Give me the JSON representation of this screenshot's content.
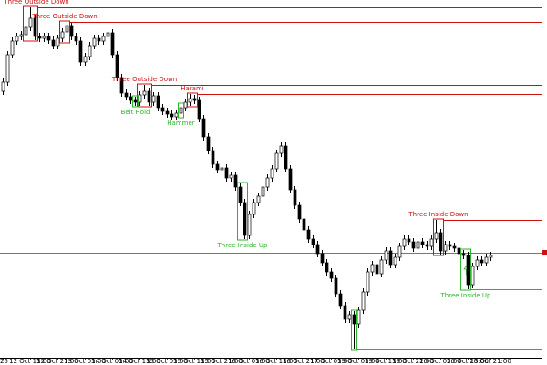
{
  "chart_data": {
    "type": "candlestick",
    "ylim": [
      0,
      392
    ],
    "categories": [
      "25",
      null,
      null,
      null,
      null,
      null,
      "12 Oct 13:00",
      null,
      null,
      null,
      null,
      null,
      "12 Oct 21:00",
      null,
      null,
      null,
      null,
      null,
      "13 Oct 05:00",
      null,
      null,
      null,
      null,
      null,
      "14 Oct 05:00",
      null,
      null,
      null,
      null,
      null,
      "14 Oct 13:00",
      null,
      null,
      null,
      null,
      null,
      "15 Oct 05:00",
      null,
      null,
      null,
      null,
      null,
      "15 Oct 13:00",
      null,
      null,
      null,
      null,
      null,
      "15 Oct 21:00",
      null,
      null,
      null,
      null,
      null,
      "16 Oct 05:00",
      null,
      null,
      null,
      null,
      null,
      "16 Oct 13:00",
      null,
      null,
      null,
      null,
      null,
      "16 Oct 21:00",
      null,
      null,
      null,
      null,
      null,
      "17 Oct 05:00",
      null,
      null,
      null,
      null,
      null,
      "19 Oct 05:00",
      null,
      null,
      null,
      null,
      null,
      "19 Oct 13:00",
      null,
      null,
      null,
      null,
      null,
      "19 Oct 21:00",
      null,
      null,
      null,
      null,
      null,
      "20 Oct 05:00",
      null,
      null,
      null,
      null,
      null,
      "20 Oct 13:00",
      null,
      null,
      null,
      null,
      "20 Oct 21:00"
    ],
    "open": [
      292,
      302,
      332,
      347,
      352,
      354,
      362,
      372,
      352,
      350,
      352,
      348,
      342,
      350,
      357,
      364,
      352,
      347,
      324,
      330,
      342,
      350,
      347,
      352,
      356,
      332,
      307,
      290,
      286,
      282,
      280,
      288,
      292,
      280,
      287,
      274,
      270,
      267,
      264,
      268,
      274,
      280,
      284,
      282,
      262,
      242,
      227,
      212,
      206,
      208,
      197,
      200,
      187,
      170,
      134,
      157,
      170,
      177,
      187,
      197,
      207,
      224,
      232,
      207,
      184,
      167,
      152,
      140,
      130,
      124,
      114,
      104,
      94,
      87,
      70,
      57,
      42,
      47,
      37,
      52,
      72,
      94,
      102,
      92,
      107,
      117,
      102,
      110,
      122,
      130,
      127,
      120,
      127,
      124,
      122,
      130,
      137,
      117,
      124,
      122,
      120,
      114,
      112,
      80,
      100,
      107,
      104,
      110
    ],
    "high": [
      306,
      336,
      351,
      356,
      358,
      366,
      384,
      376,
      356,
      356,
      356,
      352,
      354,
      361,
      368,
      368,
      356,
      351,
      334,
      346,
      354,
      354,
      356,
      360,
      360,
      336,
      311,
      294,
      290,
      286,
      292,
      299,
      296,
      291,
      291,
      278,
      274,
      271,
      272,
      278,
      284,
      289,
      288,
      286,
      266,
      246,
      231,
      216,
      212,
      212,
      204,
      204,
      191,
      174,
      161,
      174,
      181,
      191,
      201,
      211,
      228,
      236,
      236,
      211,
      188,
      171,
      156,
      144,
      134,
      128,
      118,
      108,
      98,
      91,
      74,
      61,
      51,
      51,
      56,
      76,
      98,
      106,
      106,
      111,
      121,
      121,
      114,
      126,
      134,
      134,
      131,
      131,
      131,
      128,
      134,
      151,
      141,
      128,
      128,
      126,
      124,
      118,
      116,
      104,
      111,
      111,
      114,
      116
    ],
    "low": [
      288,
      298,
      328,
      343,
      348,
      350,
      358,
      348,
      346,
      346,
      344,
      338,
      338,
      346,
      353,
      348,
      343,
      320,
      320,
      326,
      338,
      343,
      343,
      348,
      328,
      303,
      286,
      282,
      278,
      276,
      276,
      284,
      276,
      276,
      270,
      266,
      263,
      260,
      260,
      264,
      270,
      276,
      278,
      258,
      238,
      223,
      208,
      202,
      202,
      193,
      193,
      183,
      166,
      130,
      130,
      153,
      166,
      173,
      183,
      193,
      203,
      220,
      203,
      180,
      163,
      148,
      136,
      126,
      120,
      110,
      100,
      90,
      83,
      66,
      53,
      38,
      38,
      9,
      33,
      48,
      68,
      90,
      88,
      88,
      103,
      98,
      98,
      106,
      118,
      123,
      116,
      116,
      120,
      118,
      118,
      126,
      113,
      113,
      118,
      116,
      110,
      108,
      75,
      76,
      96,
      100,
      100,
      106
    ],
    "close": [
      302,
      332,
      347,
      352,
      354,
      362,
      372,
      352,
      350,
      352,
      348,
      342,
      350,
      357,
      364,
      352,
      347,
      324,
      330,
      342,
      350,
      347,
      352,
      356,
      332,
      307,
      290,
      286,
      282,
      280,
      288,
      292,
      280,
      287,
      274,
      270,
      267,
      264,
      268,
      274,
      280,
      284,
      282,
      262,
      242,
      227,
      212,
      206,
      208,
      197,
      200,
      187,
      170,
      134,
      157,
      170,
      177,
      187,
      197,
      207,
      224,
      232,
      207,
      184,
      167,
      152,
      140,
      130,
      124,
      114,
      104,
      94,
      87,
      70,
      57,
      42,
      47,
      37,
      52,
      72,
      94,
      102,
      92,
      107,
      117,
      102,
      110,
      122,
      130,
      127,
      120,
      127,
      124,
      122,
      130,
      137,
      117,
      124,
      122,
      120,
      114,
      112,
      80,
      100,
      107,
      104,
      110,
      112
    ],
    "up_color": "#ffffff",
    "down_color": "#000000",
    "outline_color": "#000000",
    "price_line": 115,
    "price_line_color": "#d01010",
    "patterns": [
      {
        "label": "Three Outside Down",
        "color": "#d01010",
        "candles": [
          5,
          7
        ],
        "level": 384
      },
      {
        "label": "Three Outside Down",
        "color": "#d01010",
        "candles": [
          13,
          14
        ],
        "level": 368
      },
      {
        "label": "Three Outside Down",
        "color": "#d01010",
        "candles": [
          30,
          32
        ],
        "level": 299
      },
      {
        "label": "Harami",
        "color": "#d01010",
        "candles": [
          41,
          42
        ],
        "level": 289
      },
      {
        "label": "Belt Hold",
        "color": "#2cb52c",
        "candles": [
          29,
          29
        ]
      },
      {
        "label": "Hammer",
        "color": "#2cb52c",
        "candles": [
          39,
          39
        ]
      },
      {
        "label": "Three Inside Up",
        "color": "#2cb52c",
        "candles": [
          52,
          53
        ]
      },
      {
        "label": "Three Inside Down",
        "color": "#d01010",
        "candles": [
          95,
          96
        ],
        "level": 151
      },
      {
        "label": "Three Inside Up",
        "color": "#2cb52c",
        "candles": [
          101,
          102
        ],
        "level": 75
      },
      {
        "color": "#2cb52c",
        "candles": [
          77,
          77
        ],
        "level": 9
      }
    ]
  }
}
